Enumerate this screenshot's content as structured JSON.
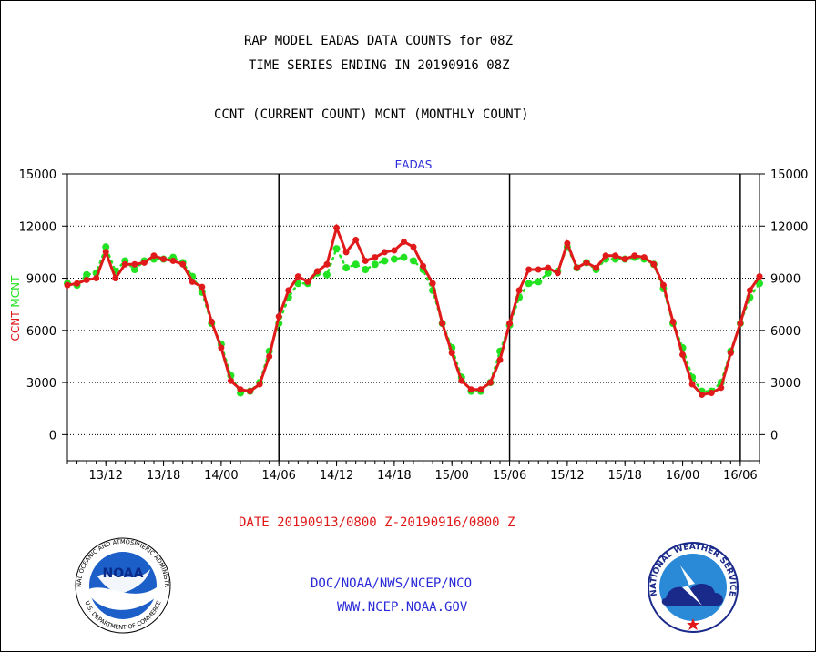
{
  "header": {
    "title_line1": "RAP MODEL EADAS DATA COUNTS for 08Z",
    "title_line2": "TIME SERIES ENDING IN 20190916 08Z",
    "title_line3": "CCNT (CURRENT COUNT) MCNT (MONTHLY COUNT)"
  },
  "footer": {
    "date_range": "DATE 20190913/0800 Z-20190916/0800 Z",
    "org_line": "DOC/NOAA/NWS/NCEP/NCO",
    "url_line": "WWW.NCEP.NOAA.GOV",
    "noaa_logo_text": "NOAA",
    "noaa_ring_text": "NATIONAL OCEANIC AND ATMOSPHERIC ADMINISTRATION",
    "noaa_ring_text_bottom": "U.S. DEPARTMENT OF COMMERCE",
    "nws_ring_text": "NATIONAL WEATHER SERVICE"
  },
  "colors": {
    "ccnt": "#e01a1a",
    "mcnt": "#22e222",
    "label_blue": "#2a2ad8"
  },
  "chart_data": {
    "type": "line",
    "title": "EADAS",
    "ylabel_series": [
      "CCNT",
      "MCNT"
    ],
    "ylim": [
      -1500,
      15000
    ],
    "yticks": [
      0,
      3000,
      6000,
      9000,
      12000,
      15000
    ],
    "ytick_labels": [
      "0",
      "3000",
      "6000",
      "9000",
      "12000",
      "15000"
    ],
    "xlim": [
      0,
      72
    ],
    "xticks": [
      4,
      10,
      16,
      22,
      28,
      34,
      40,
      46,
      52,
      58,
      64,
      70
    ],
    "xtick_labels": [
      "13/12",
      "13/18",
      "14/00",
      "14/06",
      "14/12",
      "14/18",
      "15/00",
      "15/06",
      "15/12",
      "15/18",
      "16/00",
      "16/06"
    ],
    "x_axis_note": "hours since 20190913/0800 Z",
    "day_boundaries": [
      22,
      46,
      70
    ],
    "grid": "horizontal dotted",
    "series": [
      {
        "name": "CCNT",
        "color": "#e01a1a",
        "x": [
          0,
          1,
          2,
          3,
          4,
          5,
          6,
          7,
          8,
          9,
          10,
          11,
          12,
          13,
          14,
          15,
          16,
          17,
          18,
          19,
          20,
          21,
          22,
          23,
          24,
          25,
          26,
          27,
          28,
          29,
          30,
          31,
          32,
          33,
          34,
          35,
          36,
          37,
          38,
          39,
          40,
          41,
          42,
          43,
          44,
          45,
          46,
          47,
          48,
          49,
          50,
          51,
          52,
          53,
          54,
          55,
          56,
          57,
          58,
          59,
          60,
          61,
          62,
          63,
          64,
          65,
          66,
          67,
          68,
          69,
          70,
          71,
          72
        ],
        "values": [
          8600,
          8700,
          8900,
          9000,
          10500,
          9000,
          9800,
          9800,
          9900,
          10300,
          10100,
          10000,
          9800,
          8800,
          8500,
          6500,
          5000,
          3100,
          2600,
          2500,
          2900,
          4500,
          6800,
          8300,
          9100,
          8800,
          9400,
          9800,
          11900,
          10500,
          11200,
          10000,
          10200,
          10500,
          10600,
          11100,
          10800,
          9700,
          8700,
          6400,
          4700,
          3100,
          2600,
          2600,
          3000,
          4300,
          6400,
          8300,
          9500,
          9500,
          9600,
          9300,
          11000,
          9600,
          9900,
          9600,
          10300,
          10300,
          10100,
          10300,
          10200,
          9800,
          8600,
          6500,
          4600,
          2900,
          2300,
          2400,
          2700,
          4700,
          6400,
          8300,
          9100
        ]
      },
      {
        "name": "MCNT",
        "color": "#22e222",
        "x": [
          0,
          1,
          2,
          3,
          4,
          5,
          6,
          7,
          8,
          9,
          10,
          11,
          12,
          13,
          14,
          15,
          16,
          17,
          18,
          19,
          20,
          21,
          22,
          23,
          24,
          25,
          26,
          27,
          28,
          29,
          30,
          31,
          32,
          33,
          34,
          35,
          36,
          37,
          38,
          39,
          40,
          41,
          42,
          43,
          44,
          45,
          46,
          47,
          48,
          49,
          50,
          51,
          52,
          53,
          54,
          55,
          56,
          57,
          58,
          59,
          60,
          61,
          62,
          63,
          64,
          65,
          66,
          67,
          68,
          69,
          70,
          71,
          72
        ],
        "values": [
          8700,
          8600,
          9200,
          9300,
          10800,
          9400,
          10000,
          9500,
          10000,
          10100,
          10100,
          10200,
          9900,
          9100,
          8200,
          6400,
          5200,
          3400,
          2400,
          2500,
          3000,
          4800,
          6400,
          7900,
          8700,
          8700,
          9300,
          9200,
          10700,
          9600,
          9800,
          9500,
          9800,
          10000,
          10100,
          10200,
          10000,
          9500,
          8300,
          6400,
          5000,
          3300,
          2500,
          2500,
          3000,
          4800,
          6300,
          7900,
          8700,
          8800,
          9300,
          9400,
          10800,
          9600,
          9900,
          9500,
          10100,
          10100,
          10100,
          10200,
          10100,
          9800,
          8400,
          6400,
          5000,
          3300,
          2500,
          2500,
          3000,
          4800,
          6400,
          7900,
          8700
        ]
      }
    ],
    "right_axis_mirror": true
  }
}
